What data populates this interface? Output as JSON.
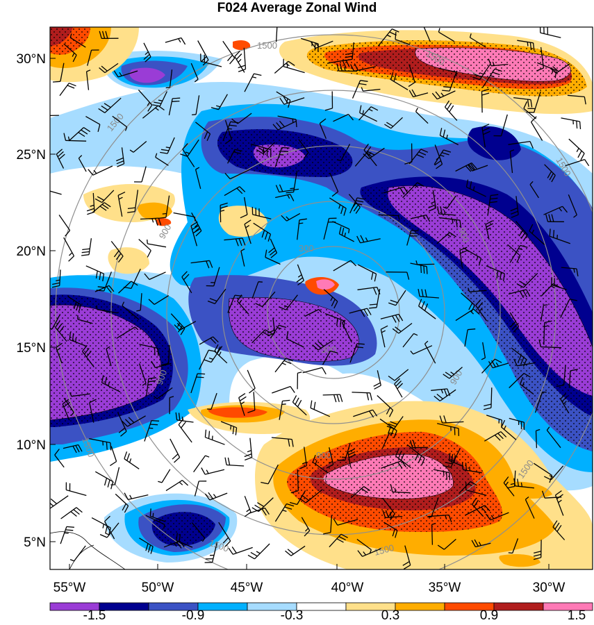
{
  "title": "F024 Average Zonal Wind",
  "axes": {
    "lat_labels": [
      "5°N",
      "10°N",
      "15°N",
      "20°N",
      "25°N",
      "30°N"
    ],
    "lon_labels": [
      "55°W",
      "50°W",
      "45°W",
      "40°W",
      "35°W",
      "30°W"
    ]
  },
  "range_rings": [
    {
      "label": "300"
    },
    {
      "label": "900"
    },
    {
      "label": "1500"
    }
  ],
  "colorbar": {
    "colors": [
      "#9a3cd6",
      "#00008f",
      "#3b52c4",
      "#00b0ff",
      "#a6dcff",
      "#ffffff",
      "#ffe08a",
      "#ffad00",
      "#ff4b00",
      "#b01d1d",
      "#ff7ab6"
    ],
    "tick_labels": [
      "-1.5",
      "-0.9",
      "-0.3",
      "0.3",
      "0.9",
      "1.5"
    ]
  }
}
